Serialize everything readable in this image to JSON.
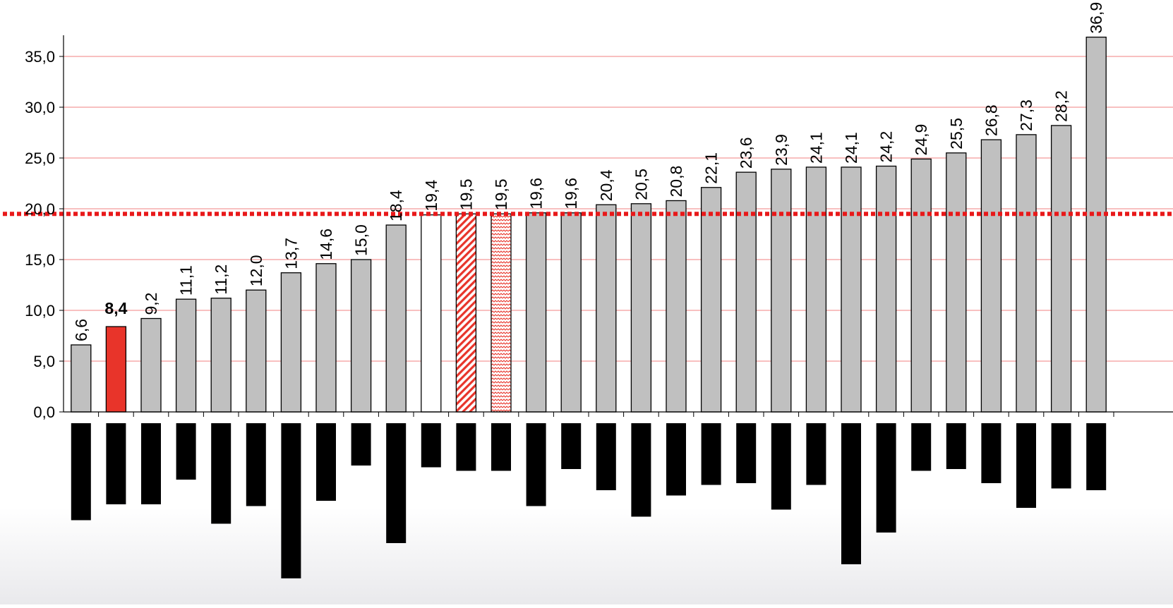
{
  "chart_data": {
    "type": "bar",
    "title": "",
    "xlabel": "",
    "ylabel": "",
    "ylim": [
      0,
      37
    ],
    "yticks": [
      "0,0",
      "5,0",
      "10,0",
      "15,0",
      "20,0",
      "25,0",
      "30,0",
      "35,0"
    ],
    "ytick_values": [
      0,
      5,
      10,
      15,
      20,
      25,
      30,
      35
    ],
    "grid": true,
    "grid_color": "#f08080",
    "reference_line": {
      "value": 19.5,
      "color": "#e8191a",
      "style": "dotted"
    },
    "values": [
      6.6,
      8.4,
      9.2,
      11.1,
      11.2,
      12.0,
      13.7,
      14.6,
      15.0,
      18.4,
      19.4,
      19.5,
      19.5,
      19.6,
      19.6,
      20.4,
      20.5,
      20.8,
      22.1,
      23.6,
      23.9,
      24.1,
      24.1,
      24.2,
      24.9,
      25.5,
      26.8,
      27.3,
      28.2,
      36.9
    ],
    "labels": [
      "6,6",
      "8,4",
      "9,2",
      "11,1",
      "11,2",
      "12,0",
      "13,7",
      "14,6",
      "15,0",
      "18,4",
      "19,4",
      "19,5",
      "19,5",
      "19,6",
      "19,6",
      "20,4",
      "20,5",
      "20,8",
      "22,1",
      "23,6",
      "23,9",
      "24,1",
      "24,1",
      "24,2",
      "24,9",
      "25,5",
      "26,8",
      "27,3",
      "28,2",
      "36,9"
    ],
    "bar_styles": [
      "gray",
      "red",
      "gray",
      "gray",
      "gray",
      "gray",
      "gray",
      "gray",
      "gray",
      "gray",
      "white",
      "red-hatch",
      "red-wave",
      "gray",
      "gray",
      "gray",
      "gray",
      "gray",
      "gray",
      "gray",
      "gray",
      "gray",
      "gray",
      "gray",
      "gray",
      "gray",
      "gray",
      "gray",
      "gray",
      "gray"
    ],
    "highlight_index": 1,
    "category_label_bars": [
      0.55,
      0.46,
      0.46,
      0.32,
      0.57,
      0.47,
      0.88,
      0.44,
      0.24,
      0.68,
      0.25,
      0.27,
      0.27,
      0.47,
      0.26,
      0.38,
      0.53,
      0.41,
      0.35,
      0.34,
      0.49,
      0.35,
      0.8,
      0.62,
      0.27,
      0.26,
      0.34,
      0.48,
      0.37,
      0.38
    ],
    "colors": {
      "gray_bar": "#c0c0c0",
      "highlight_bar": "#e8342a",
      "hatch": "#e8342a",
      "redacted_label": "#000000"
    }
  }
}
